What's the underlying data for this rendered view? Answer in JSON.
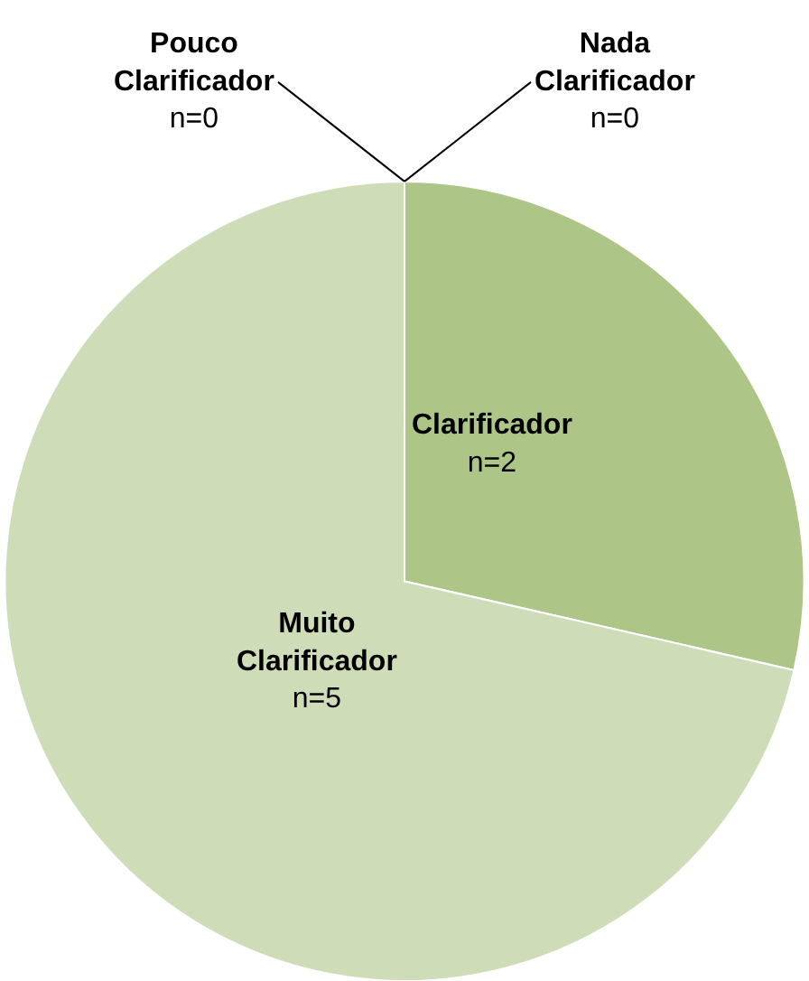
{
  "chart_data": {
    "type": "pie",
    "categories": [
      "Clarificador",
      "Muito Clarificador",
      "Pouco Clarificador",
      "Nada Clarificador"
    ],
    "values": [
      2,
      5,
      0,
      0
    ],
    "value_labels": [
      "n=2",
      "n=5",
      "n=0",
      "n=0"
    ],
    "colors": [
      "#adc687",
      "#cfdcb8",
      "#7f9a57",
      "#e4ebd7"
    ],
    "legend": false
  }
}
